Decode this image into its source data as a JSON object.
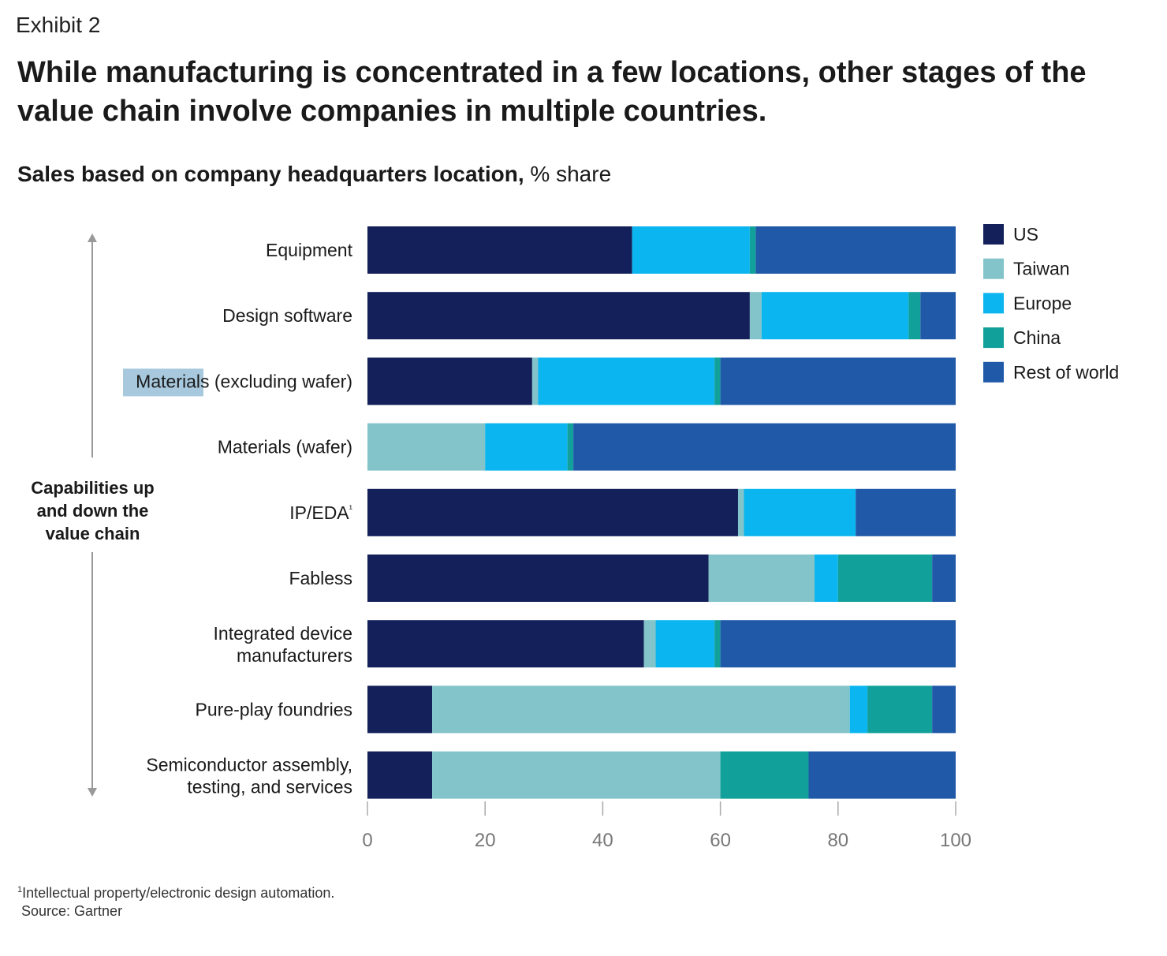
{
  "header": {
    "exhibit": "Exhibit 2",
    "title": "While manufacturing is concentrated in a few locations, other stages of the value chain involve companies in multiple countries.",
    "subtitle_bold": "Sales based on company headquarters location,",
    "subtitle_unit": " % share"
  },
  "value_chain_label": "Capabilities up and down the value chain",
  "footnote": {
    "marker": "1",
    "text": "Intellectual property/electronic design automation.",
    "source": "Source: Gartner"
  },
  "colors": {
    "US": "#13205a",
    "Taiwan": "#82c4c9",
    "Europe": "#0bb5ef",
    "China": "#12a09a",
    "Rest of world": "#2059a8",
    "highlight": "#a7c8dd",
    "axis": "#999999",
    "tick_label": "#777777"
  },
  "chart_data": {
    "type": "bar",
    "orientation": "horizontal",
    "stacked": true,
    "categories": [
      "Equipment",
      "Design software",
      "Materials (excluding wafer)",
      "Materials (wafer)",
      "IP/EDA¹",
      "Fabless",
      "Integrated device manufacturers",
      "Pure-play foundries",
      "Semiconductor assembly, testing, and services"
    ],
    "series": [
      {
        "name": "US",
        "values": [
          45,
          65,
          28,
          0,
          63,
          58,
          47,
          11,
          11
        ]
      },
      {
        "name": "Taiwan",
        "values": [
          0,
          2,
          1,
          20,
          1,
          18,
          2,
          71,
          49
        ]
      },
      {
        "name": "Europe",
        "values": [
          20,
          25,
          30,
          14,
          19,
          4,
          10,
          3,
          0
        ]
      },
      {
        "name": "China",
        "values": [
          1,
          2,
          1,
          1,
          0,
          16,
          1,
          11,
          15
        ]
      },
      {
        "name": "Rest of world",
        "values": [
          34,
          6,
          40,
          65,
          17,
          4,
          40,
          4,
          25
        ]
      }
    ],
    "xlim": [
      0,
      100
    ],
    "xticks": [
      0,
      20,
      40,
      60,
      80,
      100
    ],
    "legend": [
      "US",
      "Taiwan",
      "Europe",
      "China",
      "Rest of world"
    ],
    "legend_position": "right",
    "grid": false
  }
}
